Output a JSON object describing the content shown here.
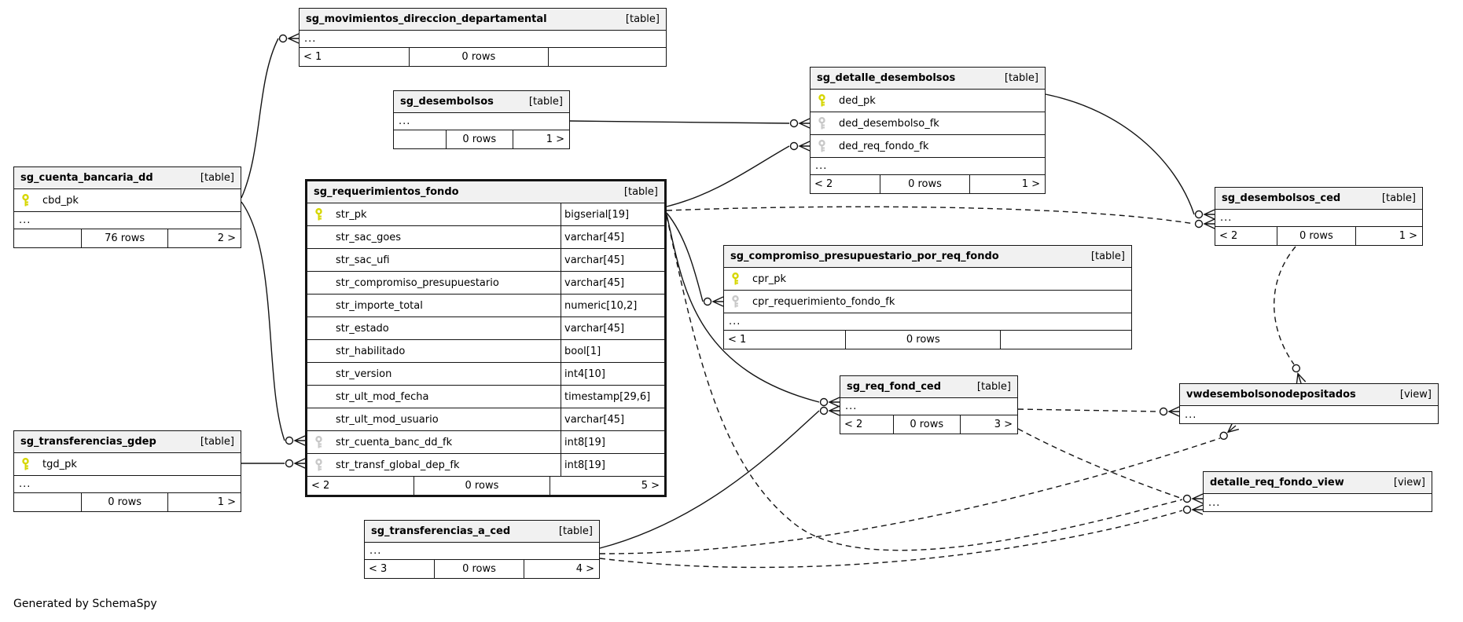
{
  "diagram": {
    "generated_by": "Generated by SchemaSpy",
    "colors": {
      "header_bg": "#f1f1f1",
      "border": "#141414",
      "primary_key": "#d6d600",
      "foreign_key": "#c8c8c8",
      "background": "#ffffff"
    },
    "entities": [
      {
        "id": "sg_movimientos_direccion_departamental",
        "name": "sg_movimientos_direccion_departamental",
        "kind": "[table]",
        "columns": [],
        "ellipsis": "...",
        "footer": {
          "left": "< 1",
          "center": "0 rows",
          "right": ""
        }
      },
      {
        "id": "sg_desembolsos",
        "name": "sg_desembolsos",
        "kind": "[table]",
        "columns": [],
        "ellipsis": "...",
        "footer": {
          "left": "",
          "center": "0 rows",
          "right": "1 >"
        }
      },
      {
        "id": "sg_cuenta_bancaria_dd",
        "name": "sg_cuenta_bancaria_dd",
        "kind": "[table]",
        "columns": [
          {
            "name": "cbd_pk",
            "key": "pk"
          }
        ],
        "ellipsis": "...",
        "footer": {
          "left": "",
          "center": "76 rows",
          "right": "2 >"
        }
      },
      {
        "id": "sg_requerimientos_fondo",
        "name": "sg_requerimientos_fondo",
        "kind": "[table]",
        "emphasized": true,
        "columns": [
          {
            "name": "str_pk",
            "type": "bigserial[19]",
            "key": "pk"
          },
          {
            "name": "str_sac_goes",
            "type": "varchar[45]"
          },
          {
            "name": "str_sac_ufi",
            "type": "varchar[45]"
          },
          {
            "name": "str_compromiso_presupuestario",
            "type": "varchar[45]"
          },
          {
            "name": "str_importe_total",
            "type": "numeric[10,2]"
          },
          {
            "name": "str_estado",
            "type": "varchar[45]"
          },
          {
            "name": "str_habilitado",
            "type": "bool[1]"
          },
          {
            "name": "str_version",
            "type": "int4[10]"
          },
          {
            "name": "str_ult_mod_fecha",
            "type": "timestamp[29,6]"
          },
          {
            "name": "str_ult_mod_usuario",
            "type": "varchar[45]"
          },
          {
            "name": "str_cuenta_banc_dd_fk",
            "type": "int8[19]",
            "key": "fk"
          },
          {
            "name": "str_transf_global_dep_fk",
            "type": "int8[19]",
            "key": "fk"
          }
        ],
        "ellipsis": "",
        "footer": {
          "left": "< 2",
          "center": "0 rows",
          "right": "5 >"
        }
      },
      {
        "id": "sg_detalle_desembolsos",
        "name": "sg_detalle_desembolsos",
        "kind": "[table]",
        "columns": [
          {
            "name": "ded_pk",
            "key": "pk"
          },
          {
            "name": "ded_desembolso_fk",
            "key": "fk"
          },
          {
            "name": "ded_req_fondo_fk",
            "key": "fk"
          }
        ],
        "ellipsis": "...",
        "footer": {
          "left": "< 2",
          "center": "0 rows",
          "right": "1 >"
        }
      },
      {
        "id": "sg_compromiso_presupuestario_por_req_fondo",
        "name": "sg_compromiso_presupuestario_por_req_fondo",
        "kind": "[table]",
        "columns": [
          {
            "name": "cpr_pk",
            "key": "pk"
          },
          {
            "name": "cpr_requerimiento_fondo_fk",
            "key": "fk"
          }
        ],
        "ellipsis": "...",
        "footer": {
          "left": "< 1",
          "center": "0 rows",
          "right": ""
        }
      },
      {
        "id": "sg_desembolsos_ced",
        "name": "sg_desembolsos_ced",
        "kind": "[table]",
        "columns": [],
        "ellipsis": "...",
        "footer": {
          "left": "< 2",
          "center": "0 rows",
          "right": "1 >"
        }
      },
      {
        "id": "sg_req_fond_ced",
        "name": "sg_req_fond_ced",
        "kind": "[table]",
        "columns": [],
        "ellipsis": "...",
        "footer": {
          "left": "< 2",
          "center": "0 rows",
          "right": "3 >"
        }
      },
      {
        "id": "vwdesembolsonodepositados",
        "name": "vwdesembolsonodepositados",
        "kind": "[view]",
        "columns": [],
        "ellipsis": "...",
        "footer": null
      },
      {
        "id": "detalle_req_fondo_view",
        "name": "detalle_req_fondo_view",
        "kind": "[view]",
        "columns": [],
        "ellipsis": "...",
        "footer": null
      },
      {
        "id": "sg_transferencias_gdep",
        "name": "sg_transferencias_gdep",
        "kind": "[table]",
        "columns": [
          {
            "name": "tgd_pk",
            "key": "pk"
          }
        ],
        "ellipsis": "...",
        "footer": {
          "left": "",
          "center": "0 rows",
          "right": "1 >"
        }
      },
      {
        "id": "sg_transferencias_a_ced",
        "name": "sg_transferencias_a_ced",
        "kind": "[table]",
        "columns": [],
        "ellipsis": "...",
        "footer": {
          "left": "< 3",
          "center": "0 rows",
          "right": "4 >"
        }
      }
    ]
  }
}
